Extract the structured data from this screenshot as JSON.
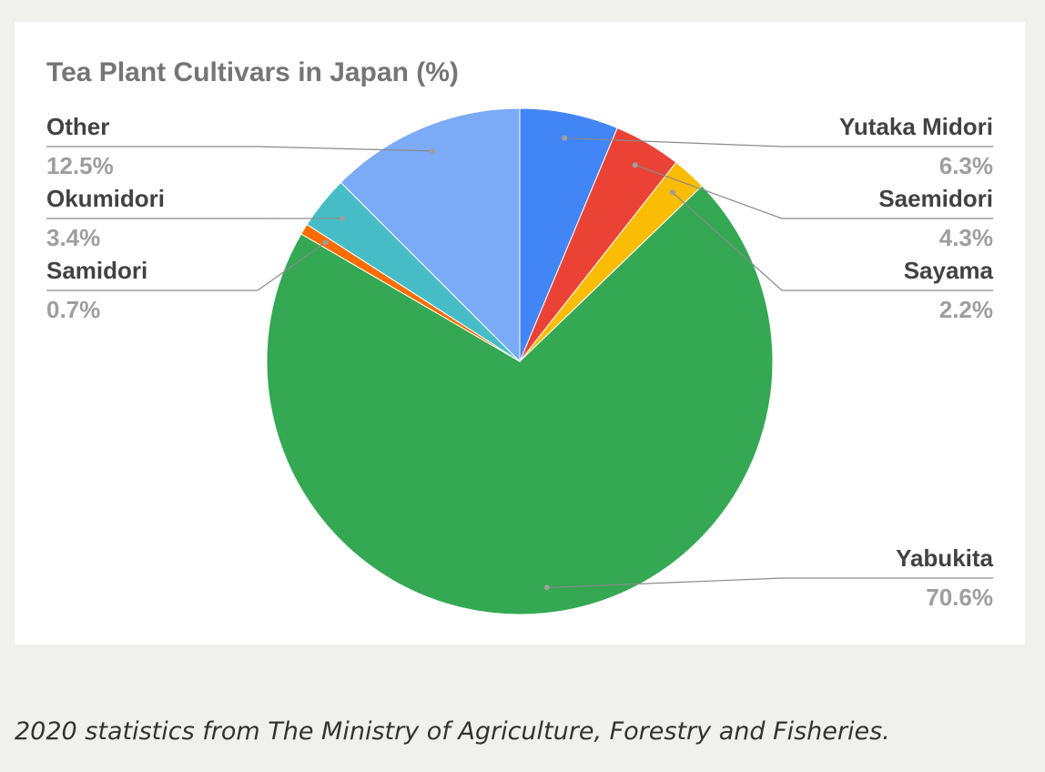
{
  "chart_data": {
    "type": "pie",
    "title": "Tea Plant Cultivars in Japan (%)",
    "slices": [
      {
        "label": "Yutaka Midori",
        "value": 6.3,
        "value_label": "6.3%",
        "color": "#4285f4"
      },
      {
        "label": "Saemidori",
        "value": 4.3,
        "value_label": "4.3%",
        "color": "#ea4335"
      },
      {
        "label": "Sayama",
        "value": 2.2,
        "value_label": "2.2%",
        "color": "#fbbc04"
      },
      {
        "label": "Yabukita",
        "value": 70.6,
        "value_label": "70.6%",
        "color": "#34a853"
      },
      {
        "label": "Samidori",
        "value": 0.7,
        "value_label": "0.7%",
        "color": "#ff6d01"
      },
      {
        "label": "Okumidori",
        "value": 3.4,
        "value_label": "3.4%",
        "color": "#46bdc6"
      },
      {
        "label": "Other",
        "value": 12.5,
        "value_label": "12.5%",
        "color": "#7baaf7"
      }
    ],
    "legend": "none",
    "label_style": "leader lines with name and percentage"
  },
  "caption": "2020 statistics from The Ministry of Agriculture, Forestry and Fisheries."
}
